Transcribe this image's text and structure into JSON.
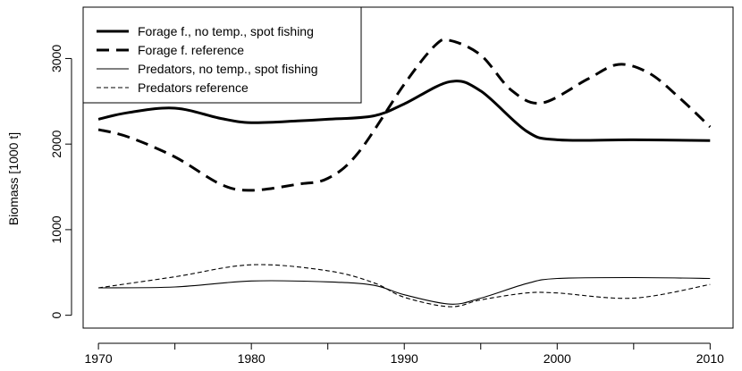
{
  "chart_data": {
    "type": "line",
    "title": "",
    "xlabel": "",
    "ylabel": "Biomass [1000 t]",
    "xlim": [
      1969,
      2011.5
    ],
    "ylim": [
      -150,
      3600
    ],
    "x_ticks": [
      1970,
      1980,
      1990,
      2000,
      2010
    ],
    "x_minor_ticks": [
      1975,
      1985,
      1995,
      2005
    ],
    "y_ticks": [
      0,
      1000,
      2000,
      3000
    ],
    "grid": false,
    "legend_position": "top-left",
    "series": [
      {
        "name": "Forage f., no temp., spot fishing",
        "style": "solid-thick",
        "color": "#000000",
        "x": [
          1970,
          1972,
          1975,
          1978,
          1980,
          1983,
          1985,
          1988,
          1990,
          1993,
          1995,
          1998,
          2000,
          2005,
          2010
        ],
        "y": [
          2290,
          2370,
          2420,
          2300,
          2250,
          2270,
          2290,
          2330,
          2470,
          2730,
          2620,
          2150,
          2050,
          2050,
          2040
        ]
      },
      {
        "name": "Forage f. reference",
        "style": "dashed-thick",
        "color": "#000000",
        "x": [
          1970,
          1972,
          1975,
          1978,
          1980,
          1983,
          1985,
          1987,
          1990,
          1992,
          1993,
          1995,
          1997,
          1999,
          2002,
          2004,
          2006,
          2008,
          2010
        ],
        "y": [
          2170,
          2080,
          1850,
          1530,
          1460,
          1530,
          1600,
          1900,
          2700,
          3150,
          3210,
          3040,
          2630,
          2480,
          2760,
          2930,
          2830,
          2540,
          2200
        ]
      },
      {
        "name": "Predators, no temp., spot fishing",
        "style": "solid-thin",
        "color": "#000000",
        "x": [
          1970,
          1975,
          1980,
          1985,
          1988,
          1990,
          1993,
          1995,
          1998,
          2000,
          2005,
          2010
        ],
        "y": [
          320,
          330,
          400,
          390,
          350,
          240,
          130,
          200,
          370,
          430,
          440,
          430
        ]
      },
      {
        "name": "Predators reference",
        "style": "dashed-thin",
        "color": "#000000",
        "x": [
          1970,
          1975,
          1980,
          1985,
          1988,
          1990,
          1993,
          1995,
          1998,
          2000,
          2005,
          2010
        ],
        "y": [
          320,
          450,
          590,
          520,
          380,
          210,
          100,
          180,
          260,
          260,
          200,
          360
        ]
      }
    ]
  }
}
